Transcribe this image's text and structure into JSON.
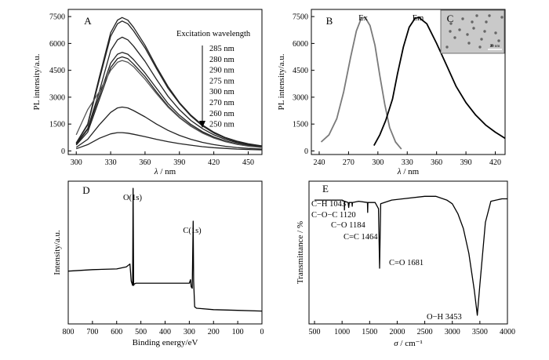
{
  "figure_caption": "",
  "chart_data": [
    {
      "panel": "A",
      "type": "line",
      "xlabel_symbol": "λ",
      "xlabel_unit": " / nm",
      "ylabel": "PL intensity/a.u.",
      "xlim": [
        293,
        462
      ],
      "ylim": [
        -200,
        7900
      ],
      "xticks": [
        300,
        330,
        360,
        390,
        420,
        450
      ],
      "yticks": [
        0,
        1500,
        3000,
        4500,
        6000,
        7500
      ],
      "legend_title": "Excitation wavelength",
      "legend_entries": [
        "285 nm",
        "280 nm",
        "290 nm",
        "275 nm",
        "300 nm",
        "270 nm",
        "260 nm",
        "250 nm"
      ],
      "x": [
        300,
        310,
        320,
        330,
        336,
        340,
        345,
        350,
        360,
        370,
        380,
        390,
        400,
        410,
        420,
        430,
        440,
        450,
        462
      ],
      "series": [
        {
          "name": "285 nm",
          "values": [
            450,
            1500,
            4100,
            6600,
            7300,
            7450,
            7300,
            6900,
            5900,
            4700,
            3600,
            2700,
            2000,
            1450,
            1050,
            750,
            550,
            400,
            280
          ]
        },
        {
          "name": "280 nm",
          "values": [
            430,
            1450,
            3950,
            6400,
            7100,
            7250,
            7100,
            6700,
            5750,
            4600,
            3500,
            2650,
            1950,
            1400,
            1000,
            720,
            520,
            380,
            270
          ]
        },
        {
          "name": "290 nm",
          "values": [
            400,
            1250,
            3300,
            5600,
            6200,
            6350,
            6200,
            5850,
            5000,
            4000,
            3050,
            2300,
            1700,
            1250,
            900,
            650,
            470,
            340,
            240
          ]
        },
        {
          "name": "275 nm",
          "values": [
            360,
            1200,
            3050,
            4900,
            5400,
            5500,
            5400,
            5100,
            4350,
            3500,
            2650,
            2000,
            1480,
            1080,
            780,
            560,
            400,
            290,
            210
          ]
        },
        {
          "name": "300 nm",
          "values": [
            330,
            1050,
            2850,
            4650,
            5150,
            5250,
            5150,
            4850,
            4150,
            3300,
            2500,
            1880,
            1400,
            1020,
            740,
            530,
            380,
            280,
            200
          ]
        },
        {
          "name": "270 nm",
          "values": [
            900,
            2300,
            3300,
            4500,
            4950,
            5050,
            4950,
            4700,
            4000,
            3200,
            2450,
            1850,
            1370,
            1000,
            720,
            520,
            370,
            270,
            190
          ]
        },
        {
          "name": "260 nm",
          "values": [
            200,
            650,
            1450,
            2150,
            2400,
            2450,
            2400,
            2250,
            1900,
            1500,
            1150,
            870,
            650,
            480,
            350,
            260,
            190,
            140,
            100
          ]
        },
        {
          "name": "250 nm",
          "values": [
            120,
            350,
            700,
            950,
            1020,
            1020,
            990,
            930,
            800,
            650,
            520,
            410,
            320,
            240,
            180,
            140,
            100,
            80,
            60
          ]
        }
      ]
    },
    {
      "panel": "B",
      "type": "line",
      "xlabel_symbol": "λ",
      "xlabel_unit": " / nm",
      "ylabel": "PL intensity/a.u.",
      "xlim": [
        232,
        430
      ],
      "ylim": [
        -200,
        7900
      ],
      "xticks": [
        240,
        270,
        300,
        330,
        360,
        390,
        420
      ],
      "yticks": [
        0,
        1500,
        3000,
        4500,
        6000,
        7500
      ],
      "inset_label": "C",
      "inset_scale_text": "20 nm",
      "series": [
        {
          "name": "Ex",
          "x": [
            242,
            250,
            258,
            265,
            272,
            278,
            283,
            287,
            292,
            297,
            302,
            307,
            312,
            318,
            324
          ],
          "values": [
            500,
            900,
            1800,
            3300,
            5200,
            6700,
            7400,
            7450,
            7000,
            5900,
            4200,
            2600,
            1300,
            500,
            100
          ]
        },
        {
          "name": "Em",
          "x": [
            296,
            302,
            308,
            315,
            320,
            326,
            332,
            338,
            342,
            350,
            360,
            370,
            380,
            390,
            400,
            410,
            420,
            430
          ],
          "values": [
            300,
            900,
            1700,
            2900,
            4300,
            5800,
            6900,
            7400,
            7450,
            7100,
            6000,
            4800,
            3600,
            2700,
            2000,
            1450,
            1050,
            700
          ]
        }
      ]
    },
    {
      "panel": "D",
      "type": "line",
      "xlabel": "Binding energy/eV",
      "ylabel": "Intensity/a.u.",
      "xlim": [
        800,
        0
      ],
      "ylim": [
        0,
        100
      ],
      "xticks": [
        800,
        700,
        600,
        500,
        400,
        300,
        200,
        100,
        0
      ],
      "annotations": [
        "O(1s)",
        "C(1s)"
      ],
      "x": [
        800,
        700,
        600,
        560,
        545,
        540,
        534,
        532,
        530,
        527,
        520,
        500,
        400,
        300,
        295,
        292,
        288,
        285,
        284,
        282,
        278,
        270,
        200,
        100,
        0
      ],
      "values": [
        37,
        38,
        38.5,
        40,
        42,
        30,
        27,
        95,
        27,
        28,
        28.5,
        28.5,
        28.5,
        28.5,
        31,
        26,
        25,
        60,
        72,
        30,
        12,
        11,
        10,
        9.5,
        9
      ]
    },
    {
      "panel": "E",
      "type": "line",
      "xlabel_symbol": "σ",
      "xlabel_unit": " / cm⁻¹",
      "ylabel": "Transmittance / %",
      "xlim": [
        400,
        4000
      ],
      "ylim": [
        0,
        100
      ],
      "xticks": [
        500,
        1000,
        1500,
        2000,
        2500,
        3000,
        3500,
        4000
      ],
      "annotations": [
        "C−H 1043",
        "C−O−C 1120",
        "C−O 1184",
        "C=C 1464",
        "C=O 1681",
        "O−H 3453"
      ],
      "x": [
        500,
        800,
        1000,
        1040,
        1043,
        1046,
        1110,
        1120,
        1130,
        1180,
        1184,
        1188,
        1300,
        1460,
        1464,
        1468,
        1600,
        1660,
        1681,
        1700,
        1900,
        2100,
        2500,
        2700,
        2900,
        3000,
        3100,
        3200,
        3300,
        3400,
        3453,
        3500,
        3600,
        3700,
        3900,
        4000
      ],
      "values": [
        93,
        93,
        93,
        92,
        85,
        92,
        91,
        87,
        91,
        91,
        88,
        91,
        92,
        91,
        83,
        91,
        91,
        86,
        38,
        90,
        93,
        94,
        96,
        96,
        93,
        90,
        82,
        70,
        50,
        20,
        0,
        25,
        75,
        92,
        94,
        94
      ]
    }
  ]
}
